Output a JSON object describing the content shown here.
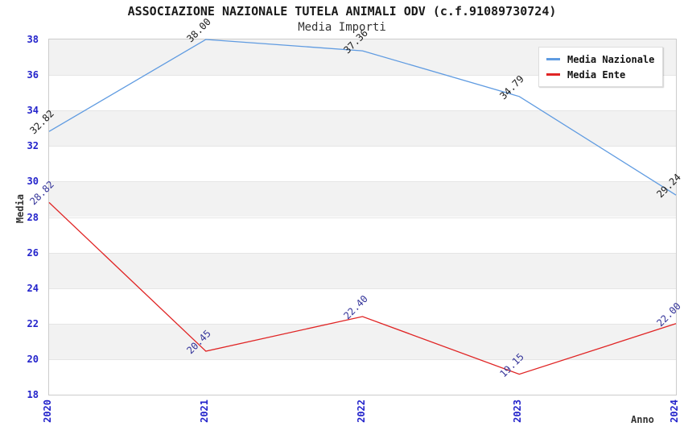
{
  "chart_data": {
    "type": "line",
    "title": "ASSOCIAZIONE NAZIONALE TUTELA ANIMALI ODV (c.f.91089730724)",
    "subtitle": "Media Importi",
    "xlabel": "Anno",
    "ylabel": "Media",
    "categories": [
      "2020",
      "2021",
      "2022",
      "2023",
      "2024"
    ],
    "ylim": [
      18,
      38
    ],
    "ytick_step": 2,
    "grid": "alternating-horizontal-bands",
    "legend_position": "top-right",
    "series": [
      {
        "name": "Media Nazionale",
        "color": "#5f9be1",
        "label_color": "#1a1a1a",
        "values": [
          32.82,
          38.0,
          37.36,
          34.79,
          29.24
        ],
        "point_labels": [
          "32.82",
          "38.00",
          "37.36",
          "34.79",
          "29.24"
        ]
      },
      {
        "name": "Media Ente",
        "color": "#e02424",
        "label_color": "#333399",
        "values": [
          28.82,
          20.45,
          22.4,
          19.15,
          22.0
        ],
        "point_labels": [
          "28.82",
          "20.45",
          "22.40",
          "19.15",
          "22.00"
        ]
      }
    ],
    "styles": {
      "tick_color": "#2323cb",
      "band_color": "#f2f2f2",
      "plot_border": "#cccccc",
      "title_color": "#1a1a1a",
      "subtitle_color": "#333333",
      "axis_title_color": "#333333"
    }
  }
}
